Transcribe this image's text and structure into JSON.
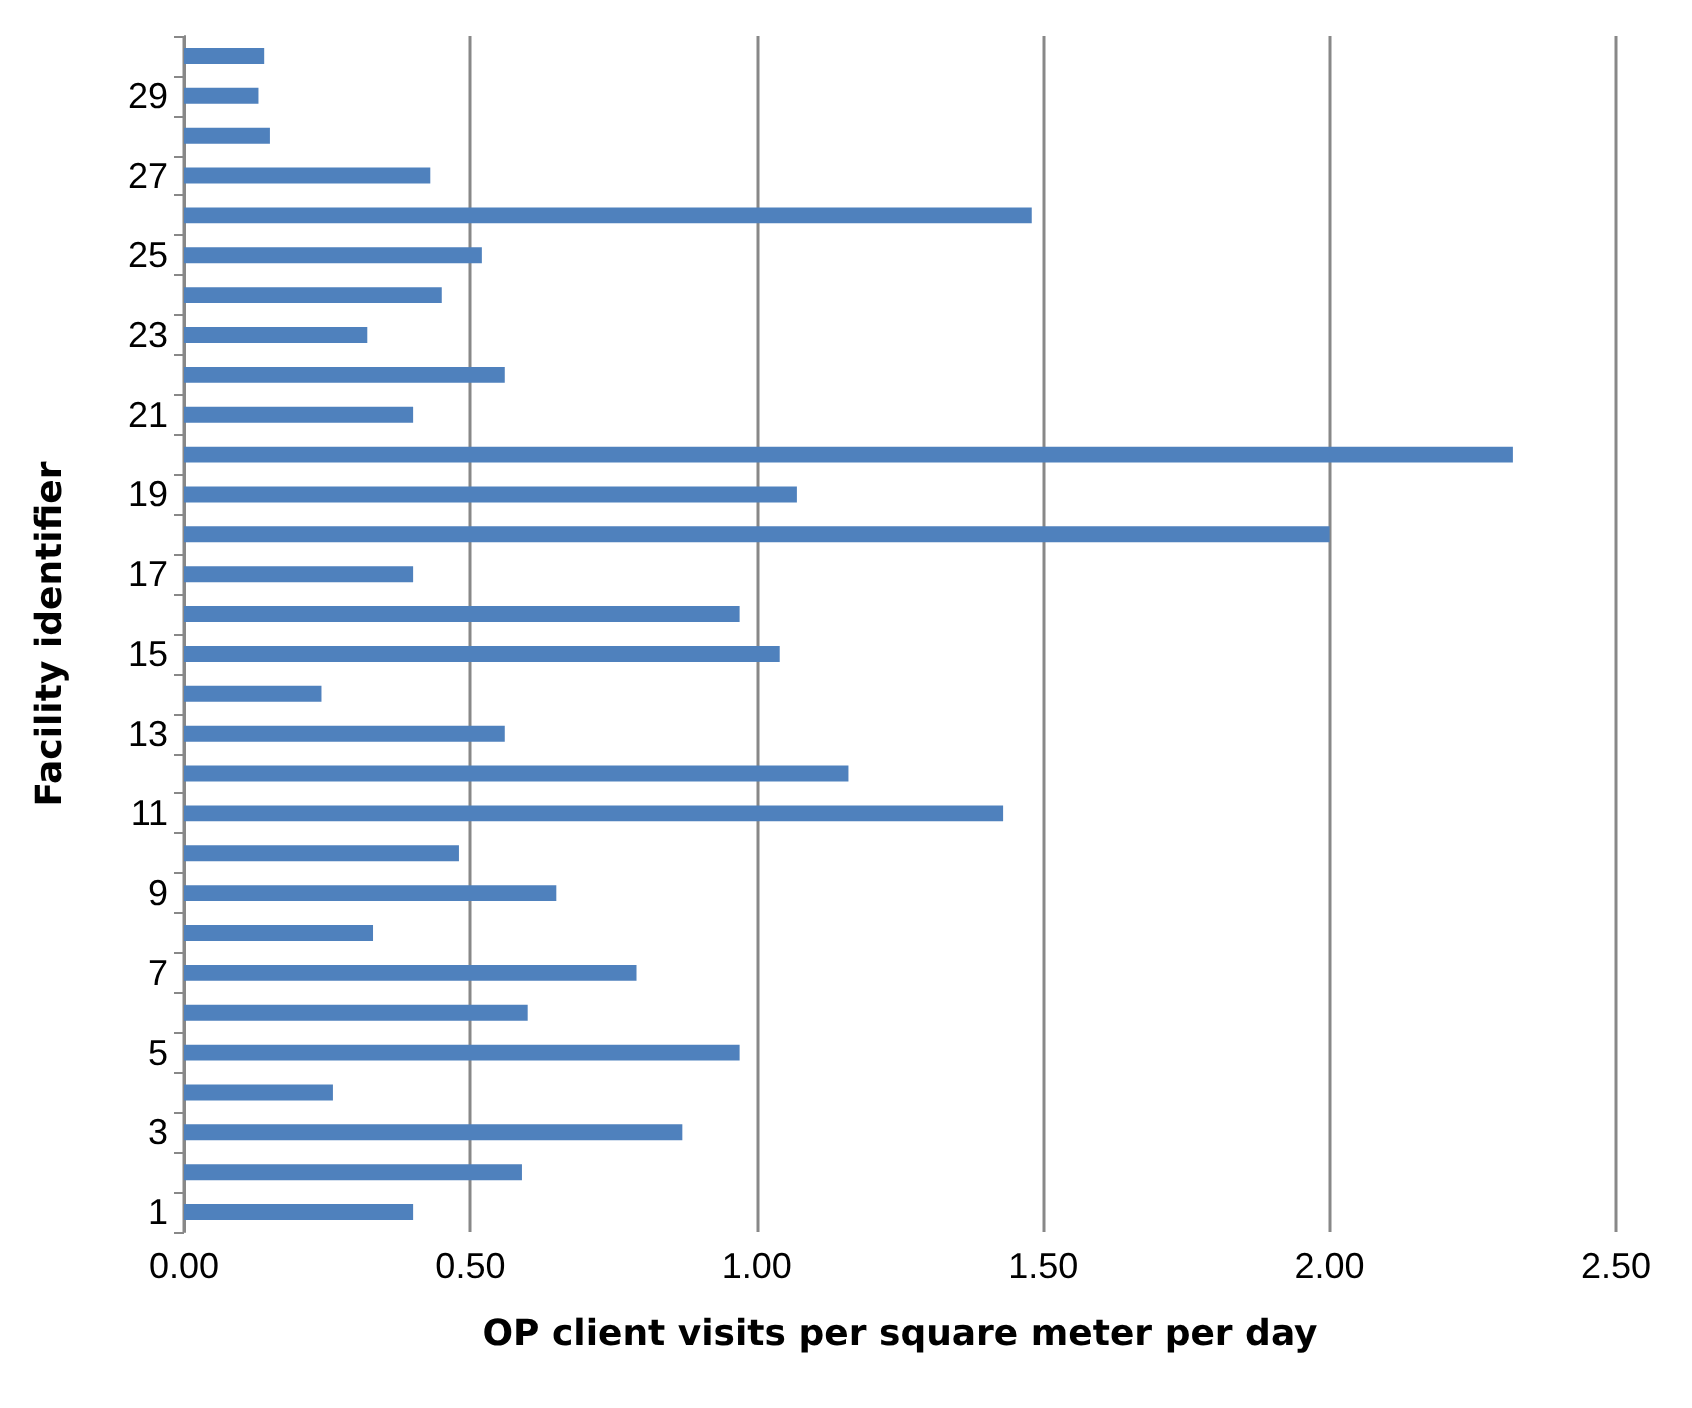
{
  "chart_data": {
    "type": "bar",
    "orientation": "horizontal",
    "xlabel": "OP client visits per square meter per day",
    "ylabel": "Facility identifier",
    "categories": [
      null,
      "29",
      null,
      "27",
      null,
      "25",
      null,
      "23",
      null,
      "21",
      null,
      "19",
      null,
      "17",
      null,
      "15",
      null,
      "13",
      null,
      "11",
      null,
      "9",
      null,
      "7",
      null,
      "5",
      null,
      "3",
      null,
      "1"
    ],
    "values": [
      0.14,
      0.13,
      0.15,
      0.43,
      1.48,
      0.52,
      0.45,
      0.32,
      0.56,
      0.4,
      2.32,
      1.07,
      2.0,
      0.4,
      0.97,
      1.04,
      0.24,
      0.56,
      1.16,
      1.43,
      0.48,
      0.65,
      0.33,
      0.79,
      0.6,
      0.97,
      0.26,
      0.87,
      0.59,
      0.4
    ],
    "color": "#4f81bd",
    "xlim": [
      0,
      2.5
    ],
    "xticks": [
      {
        "value": 0,
        "label": "0.00"
      },
      {
        "value": 0.5,
        "label": "0.50"
      },
      {
        "value": 1,
        "label": "1.00"
      },
      {
        "value": 1.5,
        "label": "1.50"
      },
      {
        "value": 2,
        "label": "2.00"
      },
      {
        "value": 2.5,
        "label": "2.50"
      }
    ],
    "grid": "x"
  }
}
